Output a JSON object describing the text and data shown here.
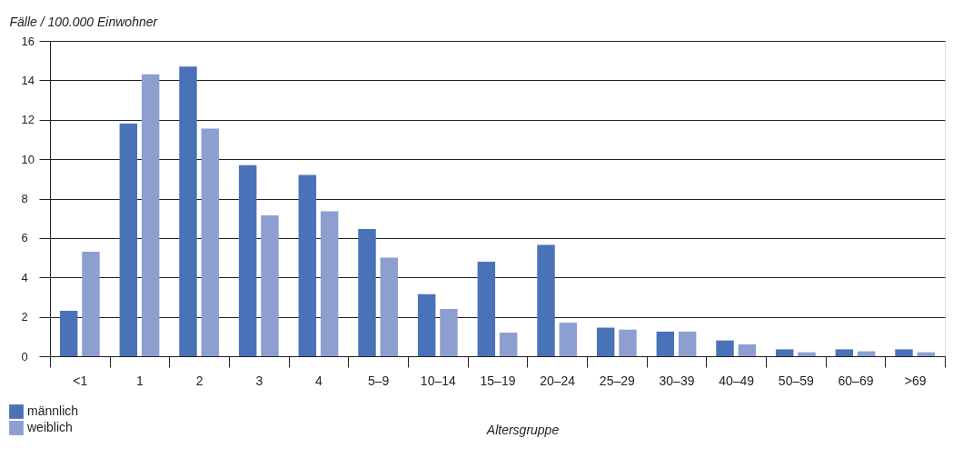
{
  "chart_data": {
    "type": "bar",
    "ylabel": "Fälle / 100.000 Einwohner",
    "xlabel": "Altersgruppe",
    "categories": [
      "<1",
      "1",
      "2",
      "3",
      "4",
      "5–9",
      "10–14",
      "15–19",
      "20–24",
      "25–29",
      "30–39",
      "40–49",
      "50–59",
      "60–69",
      ">69"
    ],
    "series": [
      {
        "name": "männlich",
        "color": "#4a72b8",
        "values": [
          2.3,
          11.8,
          14.7,
          9.7,
          9.2,
          6.45,
          3.15,
          4.8,
          5.65,
          1.45,
          1.25,
          0.8,
          0.35,
          0.35,
          0.35
        ]
      },
      {
        "name": "weiblich",
        "color": "#8d9fd0",
        "values": [
          5.3,
          14.3,
          11.55,
          7.15,
          7.35,
          5.0,
          2.4,
          1.2,
          1.7,
          1.35,
          1.25,
          0.6,
          0.2,
          0.25,
          0.2
        ]
      }
    ],
    "ylim": [
      0,
      16
    ],
    "yticks": [
      0,
      2,
      4,
      6,
      8,
      10,
      12,
      14,
      16
    ],
    "grid": "y",
    "legend": "bottom left"
  }
}
